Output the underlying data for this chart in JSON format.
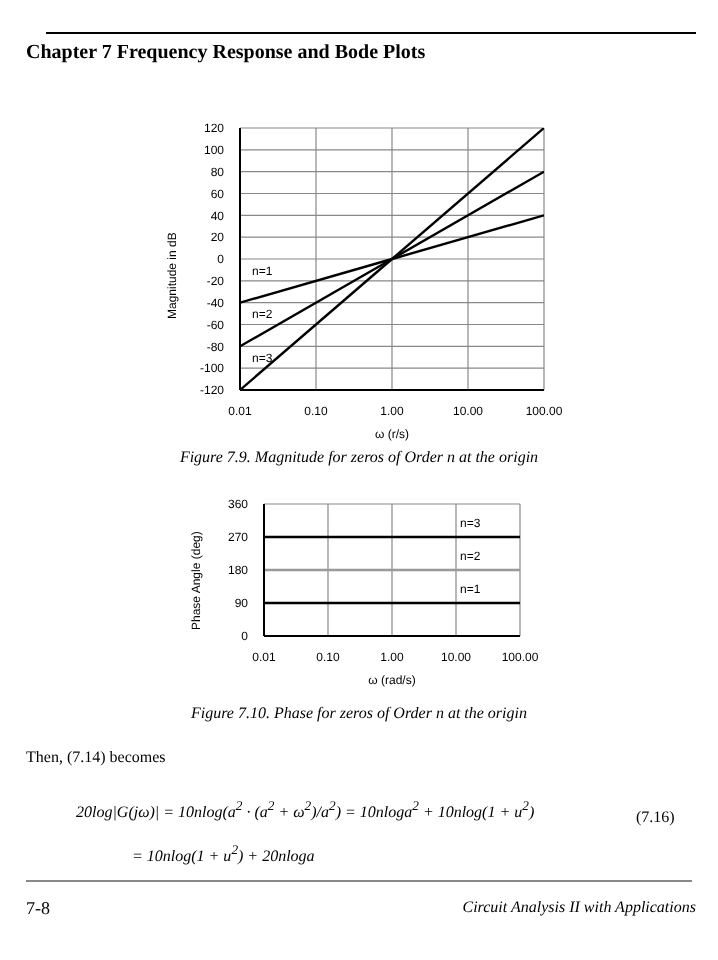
{
  "chart_data": [
    {
      "type": "line",
      "xlabel": "ω (r/s)",
      "ylabel": "Magnitude in dB",
      "log": "x",
      "grid": true,
      "xlim": [
        0.01,
        100
      ],
      "xticks": [
        {
          "value": 0.01,
          "label": "0.01"
        },
        {
          "value": 0.1,
          "label": "0.10"
        },
        {
          "value": 1,
          "label": "1.00"
        },
        {
          "value": 10,
          "label": "10.00"
        },
        {
          "value": 100,
          "label": "100.00"
        }
      ],
      "ylim": [
        -120,
        120
      ],
      "yticks": [
        -120,
        -100,
        -80,
        -60,
        -40,
        -20,
        0,
        20,
        40,
        60,
        80,
        100,
        120
      ],
      "x": [
        0.01,
        1,
        100
      ],
      "series": [
        {
          "name": "n=1",
          "color": "#000000",
          "values": [
            -40,
            0,
            40
          ]
        },
        {
          "name": "n=2",
          "color": "#000000",
          "values": [
            -80,
            0,
            80
          ]
        },
        {
          "name": "n=3",
          "color": "#000000",
          "values": [
            -120,
            0,
            120
          ]
        }
      ],
      "annotations": [
        "Chapter 7  Frequency Response and Bode Plots",
        "Figure 7.9.  Magnitude for zeros of Order n at the origin"
      ]
    },
    {
      "type": "line",
      "xlabel": "ω (rad/s)",
      "ylabel": "Phase Angle (deg)",
      "log": "x",
      "grid": true,
      "xlim": [
        0.01,
        100
      ],
      "xticks": [
        {
          "value": 0.01,
          "label": "0.01"
        },
        {
          "value": 0.1,
          "label": "0.10"
        },
        {
          "value": 1,
          "label": "1.00"
        },
        {
          "value": 10,
          "label": "10.00"
        },
        {
          "value": 100,
          "label": "100.00"
        }
      ],
      "ylim": [
        0,
        360
      ],
      "yticks": [
        0,
        90,
        180,
        270,
        360
      ],
      "x": [
        0.01,
        100
      ],
      "series": [
        {
          "name": "n=3",
          "color": "#000000",
          "values": [
            270,
            270
          ]
        },
        {
          "name": "n=2",
          "color": "#999999",
          "values": [
            180,
            180
          ]
        },
        {
          "name": "n=1",
          "color": "#000000",
          "values": [
            90,
            90
          ]
        }
      ],
      "annotations": [
        "Figure 7.10.  Phase for zeros of Order n at the origin",
        "Then, (7.14) becomes",
        "20log|G(jω)| = 10nlog(a$^{2}$ · (a$^{2}$ + ω$^{2}$)/a$^{2}$) = 10nloga$^{2}$ + 10nlog(1 + u$^{2}$)",
        "(7.16)",
        "= 10nlog(1 + u$^{2}$) + 20nloga",
        "7-8",
        "Circuit Analysis II with Applications"
      ]
    }
  ]
}
